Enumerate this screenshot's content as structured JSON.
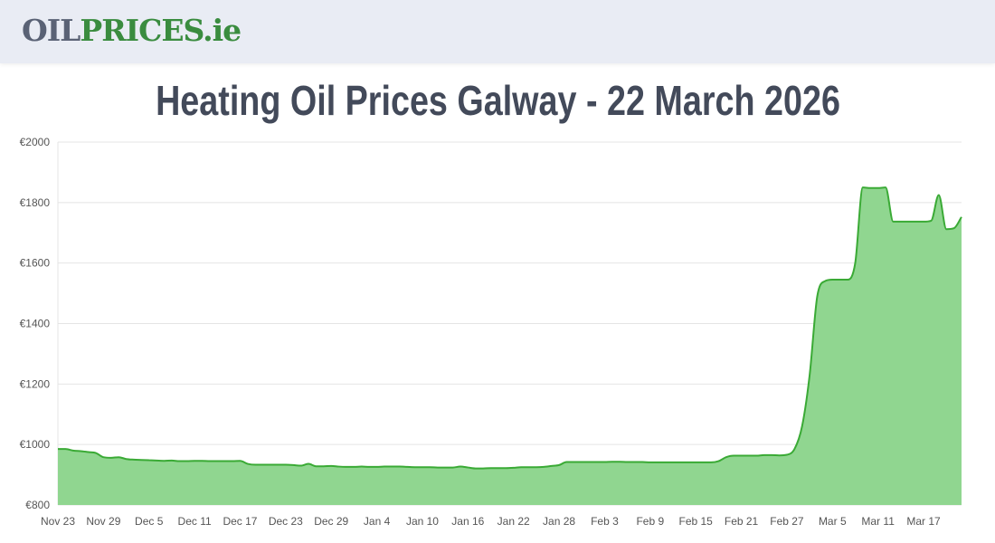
{
  "header": {
    "logo_part1": "OIL",
    "logo_part2": "PRICES.ie"
  },
  "page_title": "Heating Oil Prices Galway - 22 March 2026",
  "chart_data": {
    "type": "area",
    "title": "Heating Oil Prices Galway - 22 March 2026",
    "xlabel": "",
    "ylabel": "",
    "ylim": [
      800,
      2000
    ],
    "y_ticks": [
      "€800",
      "€1000",
      "€1200",
      "€1400",
      "€1600",
      "€1800",
      "€2000"
    ],
    "y_tick_values": [
      800,
      1000,
      1200,
      1400,
      1600,
      1800,
      2000
    ],
    "x_ticks": [
      "Nov 23",
      "Nov 29",
      "Dec 5",
      "Dec 11",
      "Dec 17",
      "Dec 23",
      "Dec 29",
      "Jan 4",
      "Jan 10",
      "Jan 16",
      "Jan 22",
      "Jan 28",
      "Feb 3",
      "Feb 9",
      "Feb 15",
      "Feb 21",
      "Feb 27",
      "Mar 5",
      "Mar 11",
      "Mar 17"
    ],
    "grid": true,
    "line_color": "#3aaa35",
    "fill_color": "#90d690",
    "x": [
      "Nov 23",
      "Nov 24",
      "Nov 25",
      "Nov 26",
      "Nov 27",
      "Nov 28",
      "Nov 29",
      "Nov 30",
      "Dec 1",
      "Dec 2",
      "Dec 3",
      "Dec 4",
      "Dec 5",
      "Dec 6",
      "Dec 7",
      "Dec 8",
      "Dec 9",
      "Dec 10",
      "Dec 11",
      "Dec 12",
      "Dec 13",
      "Dec 14",
      "Dec 15",
      "Dec 16",
      "Dec 17",
      "Dec 18",
      "Dec 19",
      "Dec 20",
      "Dec 21",
      "Dec 22",
      "Dec 23",
      "Dec 24",
      "Dec 25",
      "Dec 26",
      "Dec 27",
      "Dec 28",
      "Dec 29",
      "Dec 30",
      "Dec 31",
      "Jan 1",
      "Jan 2",
      "Jan 3",
      "Jan 4",
      "Jan 5",
      "Jan 6",
      "Jan 7",
      "Jan 8",
      "Jan 9",
      "Jan 10",
      "Jan 11",
      "Jan 12",
      "Jan 13",
      "Jan 14",
      "Jan 15",
      "Jan 16",
      "Jan 17",
      "Jan 18",
      "Jan 19",
      "Jan 20",
      "Jan 21",
      "Jan 22",
      "Jan 23",
      "Jan 24",
      "Jan 25",
      "Jan 26",
      "Jan 27",
      "Jan 28",
      "Jan 29",
      "Jan 30",
      "Jan 31",
      "Feb 1",
      "Feb 2",
      "Feb 3",
      "Feb 4",
      "Feb 5",
      "Feb 6",
      "Feb 7",
      "Feb 8",
      "Feb 9",
      "Feb 10",
      "Feb 11",
      "Feb 12",
      "Feb 13",
      "Feb 14",
      "Feb 15",
      "Feb 16",
      "Feb 17",
      "Feb 18",
      "Feb 19",
      "Feb 20",
      "Feb 21",
      "Feb 22",
      "Feb 23",
      "Feb 24",
      "Feb 25",
      "Feb 26",
      "Feb 27",
      "Feb 28",
      "Mar 1",
      "Mar 2",
      "Mar 3",
      "Mar 4",
      "Mar 5",
      "Mar 6",
      "Mar 7",
      "Mar 8",
      "Mar 9",
      "Mar 10",
      "Mar 11",
      "Mar 12",
      "Mar 13",
      "Mar 14",
      "Mar 15",
      "Mar 16",
      "Mar 17",
      "Mar 18",
      "Mar 19",
      "Mar 20",
      "Mar 21",
      "Mar 22"
    ],
    "values": [
      985,
      985,
      980,
      978,
      975,
      972,
      958,
      956,
      958,
      952,
      950,
      949,
      948,
      947,
      946,
      947,
      945,
      945,
      946,
      946,
      945,
      945,
      945,
      945,
      946,
      936,
      933,
      933,
      933,
      933,
      933,
      932,
      930,
      936,
      928,
      928,
      929,
      927,
      926,
      926,
      927,
      926,
      926,
      927,
      927,
      927,
      926,
      925,
      925,
      925,
      924,
      924,
      924,
      927,
      924,
      921,
      921,
      922,
      922,
      922,
      923,
      925,
      925,
      925,
      926,
      929,
      932,
      942,
      942,
      942,
      942,
      942,
      942,
      943,
      943,
      942,
      942,
      942,
      941,
      941,
      941,
      941,
      941,
      941,
      941,
      941,
      941,
      945,
      958,
      963,
      963,
      963,
      963,
      965,
      965,
      964,
      966,
      985,
      1060,
      1230,
      1490,
      1540,
      1545,
      1545,
      1545,
      1600,
      1850,
      1848,
      1848,
      1850,
      1737,
      1737,
      1737,
      1737,
      1737,
      1740,
      1825,
      1712,
      1715,
      1752
    ]
  }
}
